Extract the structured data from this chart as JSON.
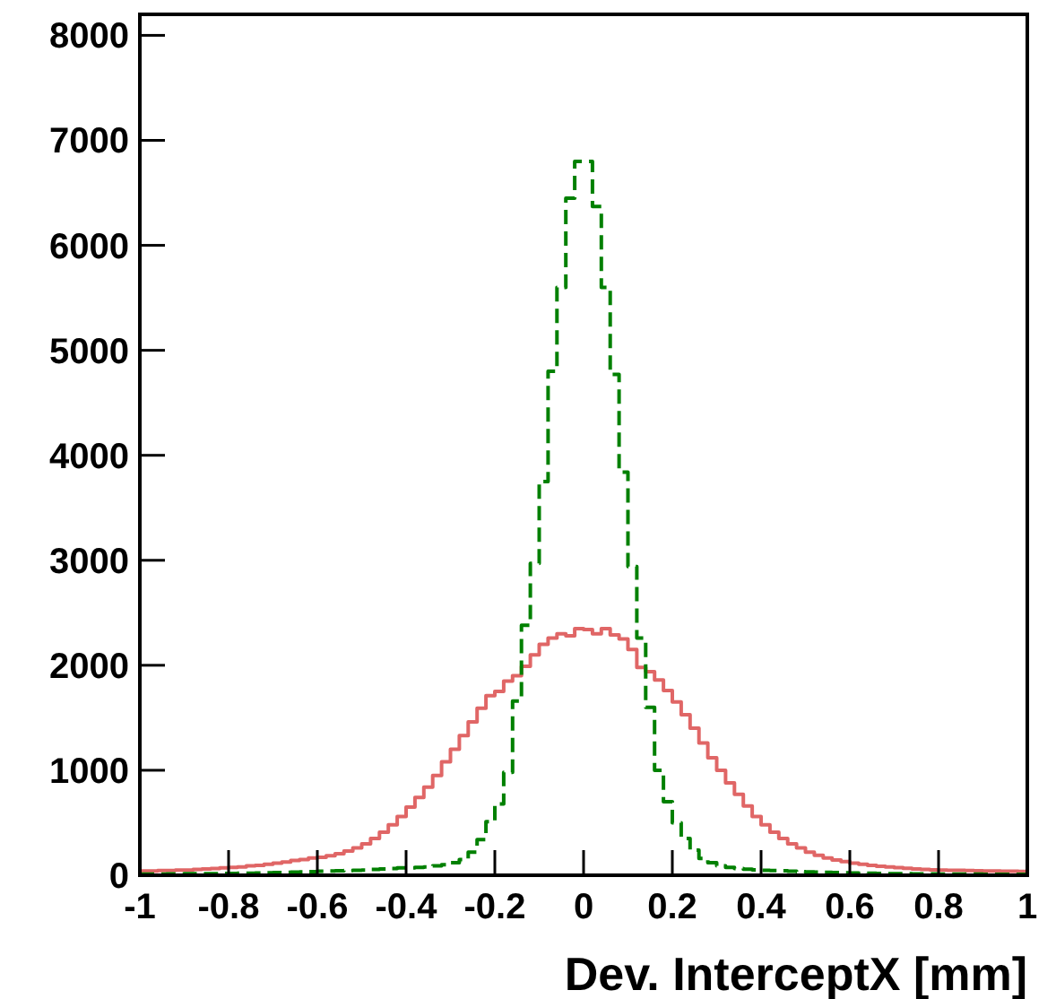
{
  "chart_data": {
    "type": "histogram",
    "xlabel": "Dev. InterceptX [mm]",
    "bins": [
      -1,
      -0.98,
      -0.96,
      -0.94,
      -0.92,
      -0.9,
      -0.88,
      -0.86,
      -0.84,
      -0.82,
      -0.8,
      -0.78,
      -0.76,
      -0.74,
      -0.72,
      -0.7,
      -0.68,
      -0.66,
      -0.64,
      -0.62,
      -0.6,
      -0.58,
      -0.56,
      -0.54,
      -0.52,
      -0.5,
      -0.48,
      -0.46,
      -0.44,
      -0.42,
      -0.4,
      -0.38,
      -0.36,
      -0.34,
      -0.32,
      -0.3,
      -0.28,
      -0.26,
      -0.24,
      -0.22,
      -0.2,
      -0.18,
      -0.16,
      -0.14,
      -0.12,
      -0.1,
      -0.08,
      -0.06,
      -0.04,
      -0.02,
      0,
      0.02,
      0.04,
      0.06,
      0.08,
      0.1,
      0.12,
      0.14,
      0.16,
      0.18,
      0.2,
      0.22,
      0.24,
      0.26,
      0.28,
      0.3,
      0.32,
      0.34,
      0.36,
      0.38,
      0.4,
      0.42,
      0.44,
      0.46,
      0.48,
      0.5,
      0.52,
      0.54,
      0.56,
      0.58,
      0.6,
      0.62,
      0.64,
      0.66,
      0.68,
      0.7,
      0.72,
      0.74,
      0.76,
      0.78,
      0.8,
      0.82,
      0.84,
      0.86,
      0.88,
      0.9,
      0.92,
      0.94,
      0.96,
      0.98,
      1
    ],
    "series": [
      {
        "color": "#e06666",
        "line_style": "solid",
        "values": [
          40,
          40,
          45,
          45,
          50,
          50,
          55,
          60,
          65,
          70,
          75,
          80,
          90,
          95,
          105,
          115,
          125,
          140,
          150,
          165,
          170,
          185,
          205,
          230,
          260,
          300,
          350,
          410,
          480,
          560,
          650,
          740,
          840,
          950,
          1080,
          1200,
          1330,
          1460,
          1590,
          1710,
          1750,
          1850,
          1900,
          1990,
          2100,
          2200,
          2260,
          2300,
          2280,
          2350,
          2340,
          2300,
          2350,
          2290,
          2250,
          2150,
          1980,
          1940,
          1860,
          1760,
          1650,
          1530,
          1400,
          1260,
          1120,
          1000,
          880,
          770,
          660,
          560,
          480,
          410,
          350,
          300,
          260,
          220,
          190,
          165,
          145,
          130,
          115,
          105,
          95,
          85,
          78,
          72,
          66,
          60,
          56,
          52,
          50,
          48,
          46,
          44,
          42,
          40,
          40,
          38,
          38,
          36
        ]
      },
      {
        "color": "#008000",
        "line_style": "dashed",
        "values": [
          10,
          10,
          10,
          12,
          12,
          14,
          14,
          15,
          16,
          18,
          18,
          20,
          20,
          22,
          24,
          26,
          28,
          30,
          32,
          35,
          38,
          40,
          42,
          45,
          48,
          50,
          55,
          60,
          65,
          70,
          70,
          75,
          80,
          90,
          100,
          120,
          150,
          220,
          340,
          510,
          680,
          980,
          1660,
          2380,
          2970,
          3750,
          4800,
          5600,
          6450,
          6800,
          6800,
          6370,
          5600,
          4770,
          3840,
          2940,
          2260,
          1600,
          1000,
          700,
          500,
          350,
          240,
          160,
          120,
          90,
          75,
          65,
          58,
          52,
          48,
          45,
          42,
          38,
          35,
          32,
          30,
          28,
          26,
          24,
          22,
          20,
          19,
          18,
          16,
          15,
          14,
          13,
          12,
          12,
          11,
          11,
          10,
          10,
          10,
          9,
          9,
          9,
          8,
          8
        ]
      }
    ],
    "xlim": [
      -1,
      1
    ],
    "xticks": [
      -1,
      -0.8,
      -0.6,
      -0.4,
      -0.2,
      0,
      0.2,
      0.4,
      0.6,
      0.8,
      1
    ],
    "ylim": [
      0,
      8200
    ],
    "yticks": [
      0,
      1000,
      2000,
      3000,
      4000,
      5000,
      6000,
      7000,
      8000
    ]
  }
}
